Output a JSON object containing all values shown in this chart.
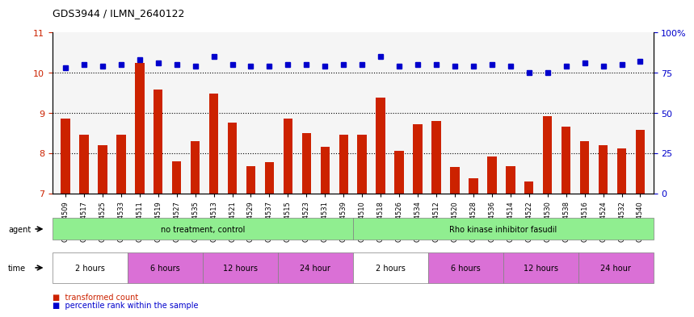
{
  "title": "GDS3944 / ILMN_2640122",
  "samples": [
    "GSM634509",
    "GSM634517",
    "GSM634525",
    "GSM634533",
    "GSM634511",
    "GSM634519",
    "GSM634527",
    "GSM634535",
    "GSM634513",
    "GSM634521",
    "GSM634529",
    "GSM634537",
    "GSM634515",
    "GSM634523",
    "GSM634531",
    "GSM634539",
    "GSM634510",
    "GSM634518",
    "GSM634526",
    "GSM634534",
    "GSM634512",
    "GSM634520",
    "GSM634528",
    "GSM634536",
    "GSM634514",
    "GSM634522",
    "GSM634530",
    "GSM634538",
    "GSM634516",
    "GSM634524",
    "GSM634532",
    "GSM634540"
  ],
  "bar_values": [
    8.85,
    8.45,
    8.2,
    8.45,
    10.25,
    9.58,
    7.8,
    8.3,
    9.48,
    8.75,
    7.68,
    7.78,
    8.85,
    8.5,
    8.15,
    8.45,
    8.45,
    9.38,
    8.05,
    8.72,
    8.8,
    7.65,
    7.38,
    7.92,
    7.68,
    7.3,
    8.92,
    8.65,
    8.3,
    8.2,
    8.12,
    8.58
  ],
  "dot_values": [
    78,
    80,
    79,
    80,
    83,
    81,
    80,
    79,
    85,
    80,
    79,
    79,
    80,
    80,
    79,
    80,
    80,
    85,
    79,
    80,
    80,
    79,
    79,
    80,
    79,
    75,
    75,
    79,
    81,
    79,
    80,
    82
  ],
  "bar_color": "#cc2200",
  "dot_color": "#0000cc",
  "ylim_left": [
    7,
    11
  ],
  "ylim_right": [
    0,
    100
  ],
  "yticks_left": [
    7,
    8,
    9,
    10,
    11
  ],
  "yticks_right": [
    0,
    25,
    50,
    75,
    100
  ],
  "grid_values": [
    8,
    9,
    10
  ],
  "agent_groups": [
    {
      "label": "no treatment, control",
      "color": "#90ee90",
      "start": 0,
      "end": 16
    },
    {
      "label": "Rho kinase inhibitor fasudil",
      "color": "#90ee90",
      "start": 16,
      "end": 32
    }
  ],
  "time_groups": [
    {
      "label": "2 hours",
      "color": "#ffffff",
      "start": 0,
      "end": 4
    },
    {
      "label": "6 hours",
      "color": "#da70d6",
      "start": 4,
      "end": 8
    },
    {
      "label": "12 hours",
      "color": "#da70d6",
      "start": 8,
      "end": 12
    },
    {
      "label": "24 hour",
      "color": "#da70d6",
      "start": 12,
      "end": 16
    },
    {
      "label": "2 hours",
      "color": "#ffffff",
      "start": 16,
      "end": 20
    },
    {
      "label": "6 hours",
      "color": "#da70d6",
      "start": 20,
      "end": 24
    },
    {
      "label": "12 hours",
      "color": "#da70d6",
      "start": 24,
      "end": 28
    },
    {
      "label": "24 hour",
      "color": "#da70d6",
      "start": 28,
      "end": 32
    }
  ],
  "legend_items": [
    {
      "label": "transformed count",
      "color": "#cc2200",
      "marker": "s"
    },
    {
      "label": "percentile rank within the sample",
      "color": "#0000cc",
      "marker": "s"
    }
  ]
}
